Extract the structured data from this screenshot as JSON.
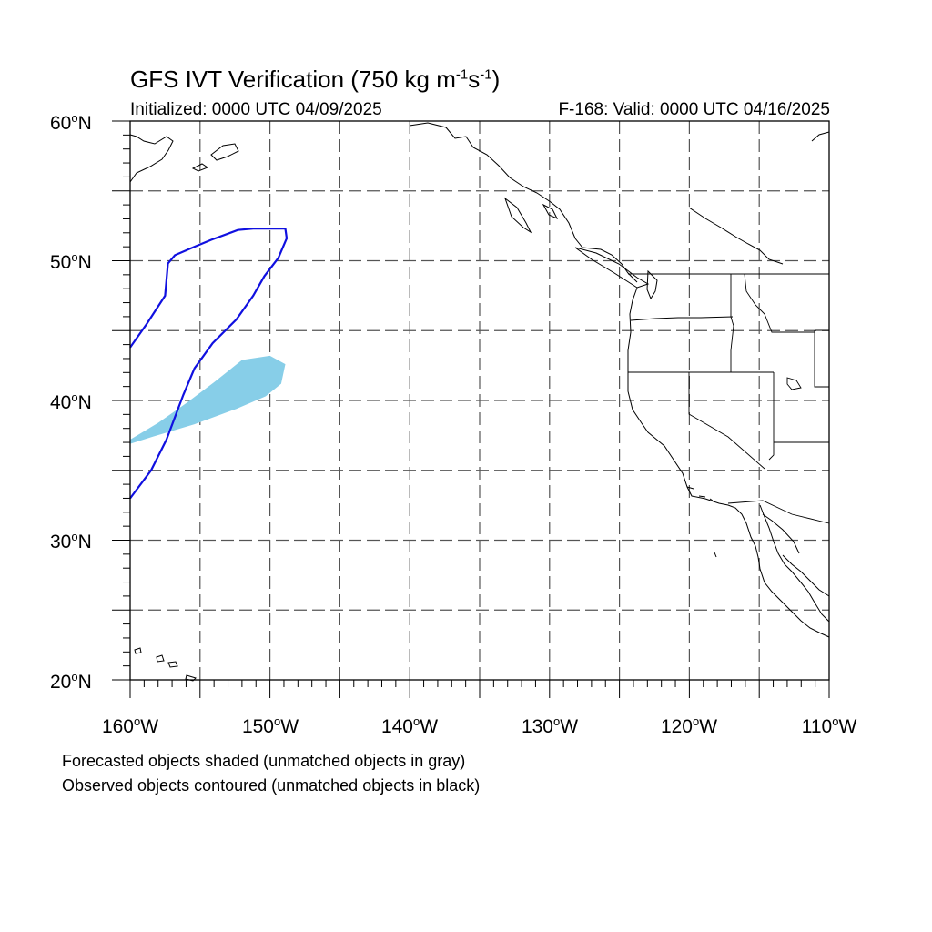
{
  "title": {
    "main": "GFS IVT Verification (750 kg m",
    "exp1": "-1",
    "mid": "s",
    "exp2": "-1",
    "end": ")"
  },
  "subtitle_left": "Initialized: 0000 UTC 04/09/2025",
  "subtitle_right": "F-168: Valid: 0000 UTC 04/16/2025",
  "lat_labels": [
    {
      "num": "60",
      "deg": "o",
      "dir": "N"
    },
    {
      "num": "50",
      "deg": "o",
      "dir": "N"
    },
    {
      "num": "40",
      "deg": "o",
      "dir": "N"
    },
    {
      "num": "30",
      "deg": "o",
      "dir": "N"
    },
    {
      "num": "20",
      "deg": "o",
      "dir": "N"
    }
  ],
  "lon_labels": [
    {
      "num": "160",
      "deg": "o",
      "dir": "W"
    },
    {
      "num": "150",
      "deg": "o",
      "dir": "W"
    },
    {
      "num": "140",
      "deg": "o",
      "dir": "W"
    },
    {
      "num": "130",
      "deg": "o",
      "dir": "W"
    },
    {
      "num": "120",
      "deg": "o",
      "dir": "W"
    },
    {
      "num": "110",
      "deg": "o",
      "dir": "W"
    }
  ],
  "notes": {
    "forecast": "Forecasted objects shaded (unmatched objects in gray)",
    "observed": "Observed objects contoured (unmatched objects in black)"
  },
  "map": {
    "lon_range": [
      -160,
      -110
    ],
    "lat_range": [
      20,
      60
    ],
    "gridlines": "dashed every 5 degrees",
    "forecast_object_color": "#87CEE8",
    "observed_object_color": "#1010E0",
    "coastline_color": "#000000",
    "forecast_object": [
      [
        -160,
        37.2
      ],
      [
        -158,
        38.4
      ],
      [
        -156,
        39.8
      ],
      [
        -154,
        41.3
      ],
      [
        -152,
        42.9
      ],
      [
        -150,
        43.2
      ],
      [
        -148.9,
        42.6
      ],
      [
        -149.2,
        41.2
      ],
      [
        -150.3,
        40.3
      ],
      [
        -152.4,
        39.4
      ],
      [
        -155.4,
        38.3
      ],
      [
        -158.4,
        37.4
      ],
      [
        -160,
        36.9
      ]
    ],
    "observed_object": [
      [
        -160,
        43.8
      ],
      [
        -158.8,
        45.5
      ],
      [
        -157.5,
        47.5
      ],
      [
        -157.3,
        49.8
      ],
      [
        -156.8,
        50.4
      ],
      [
        -155.4,
        51.0
      ],
      [
        -154.2,
        51.5
      ],
      [
        -152.3,
        52.2
      ],
      [
        -151.2,
        52.3
      ],
      [
        -149.8,
        52.3
      ],
      [
        -148.9,
        52.3
      ],
      [
        -148.8,
        51.6
      ],
      [
        -149.4,
        50.2
      ],
      [
        -150.4,
        48.9
      ],
      [
        -151.2,
        47.5
      ],
      [
        -152.4,
        45.8
      ],
      [
        -154.1,
        44.1
      ],
      [
        -155.4,
        42.3
      ],
      [
        -156.2,
        40.4
      ],
      [
        -157.4,
        37.2
      ],
      [
        -158.5,
        35.0
      ],
      [
        -160,
        33.0
      ]
    ]
  }
}
